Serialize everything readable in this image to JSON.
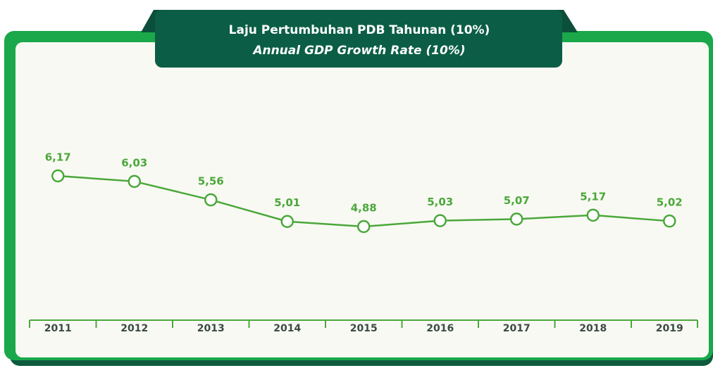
{
  "chart_data": {
    "type": "line",
    "title": "Laju Pertumbuhan PDB Tahunan (10%)",
    "subtitle": "Annual GDP Growth Rate (10%)",
    "categories": [
      "2011",
      "2012",
      "2013",
      "2014",
      "2015",
      "2016",
      "2017",
      "2018",
      "2019"
    ],
    "values": [
      6.17,
      6.03,
      5.56,
      5.01,
      4.88,
      5.03,
      5.07,
      5.17,
      5.02
    ],
    "value_labels": [
      "6,17",
      "6,03",
      "5,56",
      "5,01",
      "4,88",
      "5,03",
      "5,07",
      "5,17",
      "5,02"
    ],
    "color": "#4aa83a"
  }
}
